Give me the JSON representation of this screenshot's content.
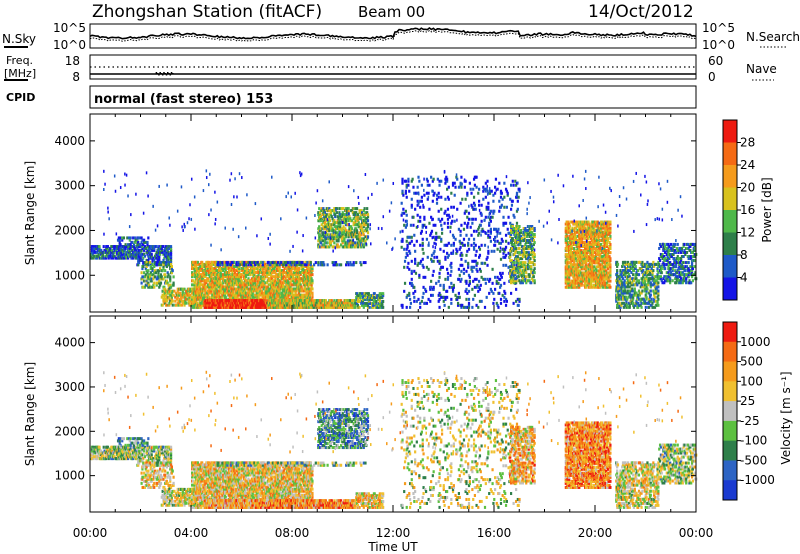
{
  "header": {
    "station": "Zhongshan Station (fitACF)",
    "beam": "Beam 00",
    "date": "14/Oct/2012"
  },
  "noise_panel": {
    "left_label": "N.Sky",
    "right_label": "N.Search",
    "left_ticks": [
      "10^5",
      "10^0"
    ],
    "right_ticks": [
      "10^5",
      "10^0"
    ]
  },
  "freq_panel": {
    "label_line1": "Freq.",
    "label_line2": "[MHz]",
    "right_label": "Nave",
    "left_ticks": [
      "18",
      "8"
    ],
    "right_ticks": [
      "60",
      "0"
    ]
  },
  "cpid": {
    "label": "CPID",
    "value": "normal (fast stereo) 153"
  },
  "chart_data": [
    {
      "type": "heatmap",
      "quantity": "Power",
      "ylabel": "Slant Range [km]",
      "xlabel": "Time UT",
      "xlim": [
        "00:00",
        "24:00"
      ],
      "ylim": [
        180,
        4600
      ],
      "y_ticks": [
        1000,
        2000,
        3000,
        4000
      ],
      "x_ticks": [
        "00:00",
        "04:00",
        "08:00",
        "12:00",
        "16:00",
        "20:00",
        "00:00"
      ],
      "colorbar": {
        "label": "Power [dB]",
        "ticks": [
          "4",
          "8",
          "12",
          "16",
          "20",
          "24",
          "28"
        ],
        "colors": [
          "#1414e6",
          "#1e5ac8",
          "#2e7f4a",
          "#4fb84a",
          "#d8c21e",
          "#f59b1c",
          "#f56a14",
          "#ee1a10"
        ]
      }
    },
    {
      "type": "heatmap",
      "quantity": "Velocity",
      "ylabel": "Slant Range [km]",
      "xlabel": "Time UT",
      "xlim": [
        "00:00",
        "24:00"
      ],
      "ylim": [
        180,
        4600
      ],
      "y_ticks": [
        1000,
        2000,
        3000,
        4000
      ],
      "x_ticks": [
        "00:00",
        "04:00",
        "08:00",
        "12:00",
        "16:00",
        "20:00",
        "00:00"
      ],
      "colorbar": {
        "label": "Velocity [m s⁻¹]",
        "ticks": [
          "1000",
          "500",
          "100",
          "25",
          "-25",
          "-100",
          "-500",
          "-1000"
        ],
        "colors": [
          "#1a3ad0",
          "#2d64c4",
          "#2e7f4a",
          "#5cc040",
          "#c0c0c0",
          "#f0c030",
          "#f59b1c",
          "#f56a14",
          "#ee1a10"
        ]
      }
    }
  ]
}
